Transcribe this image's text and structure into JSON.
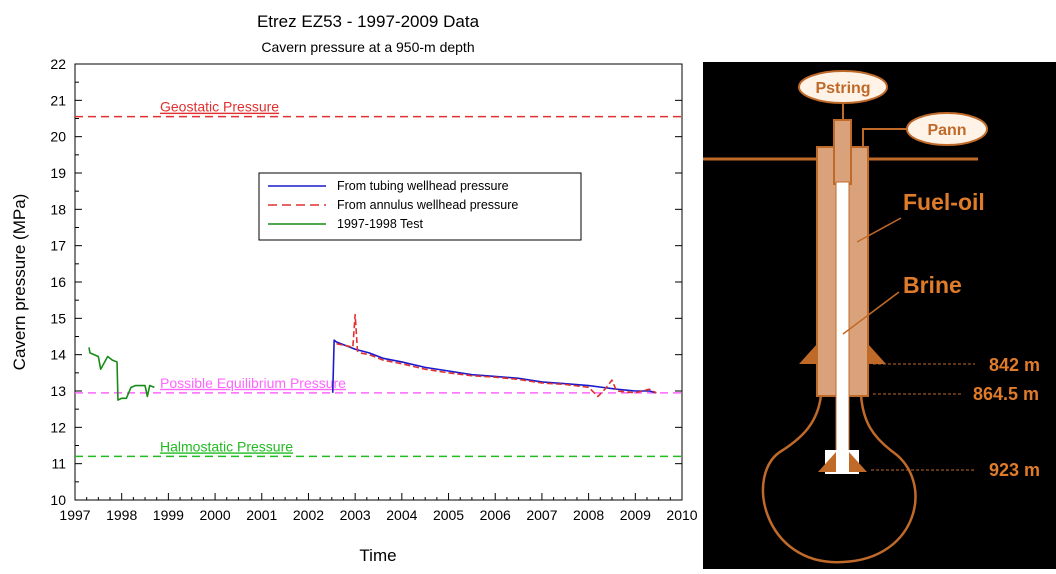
{
  "chart_data": {
    "type": "line",
    "title": "Etrez EZ53 - 1997-2009 Data",
    "subtitle": "Cavern pressure at a 950-m depth",
    "xlabel": "Time",
    "ylabel": "Cavern pressure (MPa)",
    "xlim": [
      1997,
      2010
    ],
    "ylim": [
      10,
      22
    ],
    "x_ticks": [
      "1997",
      "1998",
      "1999",
      "2000",
      "2001",
      "2002",
      "2003",
      "2004",
      "2005",
      "2006",
      "2007",
      "2008",
      "2009",
      "2010"
    ],
    "y_ticks": [
      "10",
      "11",
      "12",
      "13",
      "14",
      "15",
      "16",
      "17",
      "18",
      "19",
      "20",
      "21",
      "22"
    ],
    "grid": false,
    "legend_position": "center",
    "reference_lines": [
      {
        "label": "Geostatic Pressure",
        "y": 20.55,
        "color": "#e03030"
      },
      {
        "label": "Possible Equilibrium Pressure",
        "y": 12.95,
        "color": "#ff66ff"
      },
      {
        "label": "Halmostatic Pressure",
        "y": 11.2,
        "color": "#22bb22"
      }
    ],
    "series": [
      {
        "name": "From tubing wellhead pressure",
        "color": "#1a1acc",
        "style": "solid",
        "x": [
          2002.52,
          2002.55,
          2002.6,
          2002.8,
          2003.0,
          2003.3,
          2003.6,
          2004.0,
          2004.5,
          2005.0,
          2005.5,
          2006.0,
          2006.5,
          2007.0,
          2007.5,
          2008.0,
          2008.3,
          2008.6,
          2009.0,
          2009.3,
          2009.45
        ],
        "y": [
          12.95,
          14.4,
          14.35,
          14.25,
          14.15,
          14.05,
          13.9,
          13.8,
          13.65,
          13.55,
          13.45,
          13.4,
          13.35,
          13.25,
          13.2,
          13.15,
          13.1,
          13.05,
          13.0,
          13.0,
          12.95
        ]
      },
      {
        "name": "From annulus wellhead pressure",
        "color": "#e03030",
        "style": "dashed",
        "x": [
          2002.6,
          2002.8,
          2002.95,
          2003.0,
          2003.05,
          2003.1,
          2003.3,
          2003.6,
          2004.0,
          2004.5,
          2005.0,
          2005.5,
          2006.0,
          2006.5,
          2007.0,
          2007.5,
          2008.0,
          2008.2,
          2008.35,
          2008.5,
          2008.6,
          2009.0,
          2009.3,
          2009.45
        ],
        "y": [
          14.3,
          14.25,
          14.2,
          15.1,
          14.1,
          14.05,
          14.0,
          13.85,
          13.75,
          13.6,
          13.5,
          13.42,
          13.38,
          13.32,
          13.22,
          13.18,
          13.1,
          12.85,
          13.05,
          13.3,
          13.0,
          12.95,
          13.05,
          12.95
        ]
      },
      {
        "name": "1997-1998 Test",
        "color": "#1a8a1a",
        "style": "solid",
        "x": [
          1997.3,
          1997.32,
          1997.5,
          1997.55,
          1997.7,
          1997.8,
          1997.9,
          1997.92,
          1998.0,
          1998.1,
          1998.2,
          1998.3,
          1998.5,
          1998.55,
          1998.6,
          1998.7
        ],
        "y": [
          14.2,
          14.05,
          13.95,
          13.6,
          13.95,
          13.85,
          13.8,
          12.75,
          12.8,
          12.8,
          13.1,
          13.15,
          13.15,
          12.85,
          13.15,
          13.1
        ]
      }
    ]
  },
  "diagram": {
    "labels": {
      "pstring": "Pstring",
      "pann": "Pann",
      "fuel_oil": "Fuel-oil",
      "brine": "Brine",
      "depth_842": "842 m",
      "depth_864": "864.5 m",
      "depth_923": "923 m"
    },
    "colors": {
      "background": "#000000",
      "casing": "#d9a27a",
      "outline": "#c06a2a",
      "text": "#e07b2a",
      "brine": "#ffffff"
    }
  }
}
